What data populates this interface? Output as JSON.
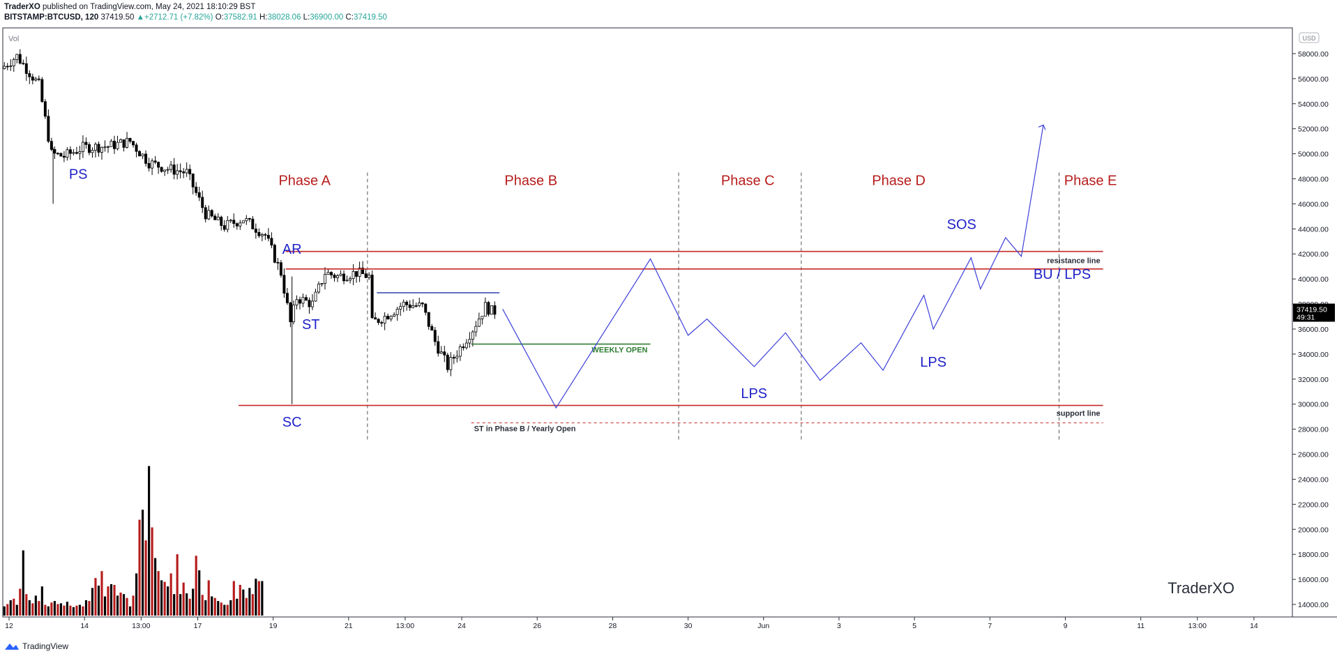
{
  "header": {
    "author": "TraderXO",
    "published": "published on TradingView.com, May 24, 2021 18:10:29 BST",
    "symbol": "BITSTAMP:BTCUSD, 120",
    "last": "37419.50",
    "change": "+2712.71 (+7.82%)",
    "open_label": "O:",
    "open": "37582.91",
    "high_label": "H:",
    "high": "38028.06",
    "low_label": "L:",
    "low": "36900.00",
    "close_label": "C:",
    "close": "37419.50"
  },
  "footer": {
    "brand": "TradingView"
  },
  "chart_data": {
    "type": "candlestick",
    "title": "BITSTAMP:BTCUSD, 120",
    "currency": "USD",
    "volume_label": "Vol",
    "watermark": "TraderXO",
    "price_tag": "37419.50",
    "countdown": "49:31",
    "ylim": [
      13000,
      59500
    ],
    "y_ticks": [
      14000,
      16000,
      18000,
      20000,
      22000,
      24000,
      26000,
      28000,
      30000,
      32000,
      34000,
      36000,
      38000,
      40000,
      42000,
      44000,
      46000,
      48000,
      50000,
      52000,
      54000,
      56000,
      58000
    ],
    "y_tick_labels": [
      "14000.00",
      "16000.00",
      "18000.00",
      "20000.00",
      "22000.00",
      "24000.00",
      "26000.00",
      "28000.00",
      "30000.00",
      "32000.00",
      "34000.00",
      "36000.00",
      "38000.00",
      "40000.00",
      "42000.00",
      "44000.00",
      "46000.00",
      "48000.00",
      "50000.00",
      "52000.00",
      "54000.00",
      "56000.00",
      "58000.00"
    ],
    "x_start": "2021-05-11T20:00",
    "x_end": "2021-06-14T20:00",
    "x_ticks": [
      {
        "t": "2021-05-12T00:00",
        "label": "12"
      },
      {
        "t": "2021-05-14T00:00",
        "label": "14"
      },
      {
        "t": "2021-05-15T12:00",
        "label": "13:00"
      },
      {
        "t": "2021-05-17T00:00",
        "label": "17"
      },
      {
        "t": "2021-05-19T00:00",
        "label": "19"
      },
      {
        "t": "2021-05-21T00:00",
        "label": "21"
      },
      {
        "t": "2021-05-22T12:00",
        "label": "13:00"
      },
      {
        "t": "2021-05-24T00:00",
        "label": "24"
      },
      {
        "t": "2021-05-26T00:00",
        "label": "26"
      },
      {
        "t": "2021-05-28T00:00",
        "label": "28"
      },
      {
        "t": "2021-05-30T00:00",
        "label": "30"
      },
      {
        "t": "2021-06-01T00:00",
        "label": "Jun"
      },
      {
        "t": "2021-06-03T00:00",
        "label": "3"
      },
      {
        "t": "2021-06-05T00:00",
        "label": "5"
      },
      {
        "t": "2021-06-07T00:00",
        "label": "7"
      },
      {
        "t": "2021-06-09T00:00",
        "label": "9"
      },
      {
        "t": "2021-06-11T00:00",
        "label": "11"
      },
      {
        "t": "2021-06-12T12:00",
        "label": "13:00"
      },
      {
        "t": "2021-06-14T00:00",
        "label": "14"
      }
    ],
    "price_path_approx": [
      [
        "2021-05-11T20:00",
        56800
      ],
      [
        "2021-05-12T06:00",
        57800
      ],
      [
        "2021-05-12T20:00",
        55500
      ],
      [
        "2021-05-13T04:00",
        50000
      ],
      [
        "2021-05-13T12:00",
        49800
      ],
      [
        "2021-05-14T00:00",
        50500
      ],
      [
        "2021-05-14T16:00",
        50600
      ],
      [
        "2021-05-15T06:00",
        51000
      ],
      [
        "2021-05-15T18:00",
        49300
      ],
      [
        "2021-05-16T06:00",
        48800
      ],
      [
        "2021-05-16T18:00",
        48500
      ],
      [
        "2021-05-17T06:00",
        45200
      ],
      [
        "2021-05-17T18:00",
        44200
      ],
      [
        "2021-05-18T06:00",
        44800
      ],
      [
        "2021-05-18T20:00",
        43500
      ],
      [
        "2021-05-19T06:00",
        40500
      ],
      [
        "2021-05-19T12:00",
        36500
      ],
      [
        "2021-05-19T16:00",
        38500
      ],
      [
        "2021-05-20T02:00",
        38000
      ],
      [
        "2021-05-20T10:00",
        40500
      ],
      [
        "2021-05-20T18:00",
        40200
      ],
      [
        "2021-05-21T06:00",
        40500
      ],
      [
        "2021-05-21T14:00",
        40200
      ],
      [
        "2021-05-21T16:00",
        36500
      ],
      [
        "2021-05-22T00:00",
        37000
      ],
      [
        "2021-05-22T12:00",
        38000
      ],
      [
        "2021-05-23T00:00",
        37800
      ],
      [
        "2021-05-23T08:00",
        35000
      ],
      [
        "2021-05-23T16:00",
        33000
      ],
      [
        "2021-05-24T00:00",
        34500
      ],
      [
        "2021-05-24T08:00",
        36000
      ],
      [
        "2021-05-24T16:00",
        37800
      ],
      [
        "2021-05-24T20:00",
        37419.5
      ]
    ],
    "volume_approx": [
      1.2,
      1.5,
      2.0,
      2.2,
      1.4,
      3.5,
      8.5,
      2.8,
      2.0,
      1.6,
      2.6,
      1.9,
      3.8,
      1.4,
      1.2,
      1.7,
      1.9,
      1.5,
      1.6,
      1.3,
      1.8,
      1.3,
      1.1,
      1.3,
      1.4,
      1.2,
      2.0,
      1.9,
      3.6,
      4.9,
      3.9,
      5.8,
      2.5,
      3.8,
      4.1,
      4.0,
      2.6,
      3.0,
      2.8,
      2.3,
      1.2,
      2.6,
      5.5,
      12.5,
      13.8,
      9.8,
      19.5,
      11.5,
      7.5,
      5.8,
      4.6,
      4.4,
      3.8,
      5.5,
      2.8,
      8.0,
      2.8,
      4.3,
      2.9,
      2.2,
      3.5,
      7.8,
      5.9,
      2.7,
      2.0,
      4.6,
      2.5,
      2.3,
      1.9,
      1.7,
      1.4,
      1.4,
      2.0,
      4.5,
      2.2,
      4.0,
      3.4,
      2.3,
      3.6,
      2.8,
      4.8,
      4.5,
      4.5
    ],
    "annotations": {
      "phases": [
        {
          "label": "Phase A",
          "t": "2021-05-19T20:00"
        },
        {
          "label": "Phase B",
          "t": "2021-05-25T20:00"
        },
        {
          "label": "Phase C",
          "t": "2021-05-31T14:00"
        },
        {
          "label": "Phase D",
          "t": "2021-06-04T14:00"
        },
        {
          "label": "Phase E",
          "t": "2021-06-09T16:00"
        }
      ],
      "phase_dividers": [
        "2021-05-21T12:00",
        "2021-05-29T18:00",
        "2021-06-02T00:00",
        "2021-06-08T20:00"
      ],
      "events": [
        {
          "label": "PS",
          "t": "2021-05-13T20:00",
          "price": 48000
        },
        {
          "label": "AR",
          "t": "2021-05-19T12:00",
          "price": 42000
        },
        {
          "label": "ST",
          "t": "2021-05-20T00:00",
          "price": 36000
        },
        {
          "label": "SC",
          "t": "2021-05-19T12:00",
          "price": 28200
        },
        {
          "label": "LPS",
          "t": "2021-05-31T18:00",
          "price": 30500
        },
        {
          "label": "LPS",
          "t": "2021-06-05T12:00",
          "price": 33000
        },
        {
          "label": "SOS",
          "t": "2021-06-06T06:00",
          "price": 44000
        },
        {
          "label": "BU / LPS",
          "t": "2021-06-08T22:00",
          "price": 40000
        }
      ],
      "levels": [
        {
          "label": "resistance line",
          "price": 42200,
          "t_start": "2021-05-19T08:00",
          "t_end": "2021-06-10T00:00",
          "color": "#c62828"
        },
        {
          "label": "",
          "price": 40800,
          "t_start": "2021-05-19T08:00",
          "t_end": "2021-06-10T00:00",
          "color": "#c62828"
        },
        {
          "label": "support line",
          "price": 29900,
          "t_start": "2021-05-18T02:00",
          "t_end": "2021-06-10T00:00",
          "color": "#c62828"
        },
        {
          "label": "WEEKLY OPEN",
          "price": 34800,
          "t_start": "2021-05-24T06:00",
          "t_end": "2021-05-29T00:00",
          "color": "#2e7d32"
        },
        {
          "label": "ST in Phase B / Yearly Open",
          "price": 28500,
          "t_start": "2021-05-24T06:00",
          "t_end": "2021-06-10T00:00",
          "color": "#c62828"
        },
        {
          "label": "",
          "price": 38900,
          "t_start": "2021-05-21T18:00",
          "t_end": "2021-05-25T00:00",
          "color": "#3f51b5"
        }
      ],
      "projection": [
        [
          "2021-05-25T02:00",
          37600
        ],
        [
          "2021-05-26T12:00",
          29700
        ],
        [
          "2021-05-29T00:00",
          41600
        ],
        [
          "2021-05-30T00:00",
          35500
        ],
        [
          "2021-05-30T12:00",
          36800
        ],
        [
          "2021-05-31T18:00",
          33000
        ],
        [
          "2021-06-01T14:00",
          35700
        ],
        [
          "2021-06-02T12:00",
          31900
        ],
        [
          "2021-06-03T14:00",
          34900
        ],
        [
          "2021-06-04T04:00",
          32700
        ],
        [
          "2021-06-05T06:00",
          38700
        ],
        [
          "2021-06-05T12:00",
          36000
        ],
        [
          "2021-06-06T12:00",
          41700
        ],
        [
          "2021-06-06T18:00",
          39200
        ],
        [
          "2021-06-07T10:00",
          43300
        ],
        [
          "2021-06-07T20:00",
          41800
        ],
        [
          "2021-06-08T10:00",
          52300
        ]
      ]
    }
  }
}
